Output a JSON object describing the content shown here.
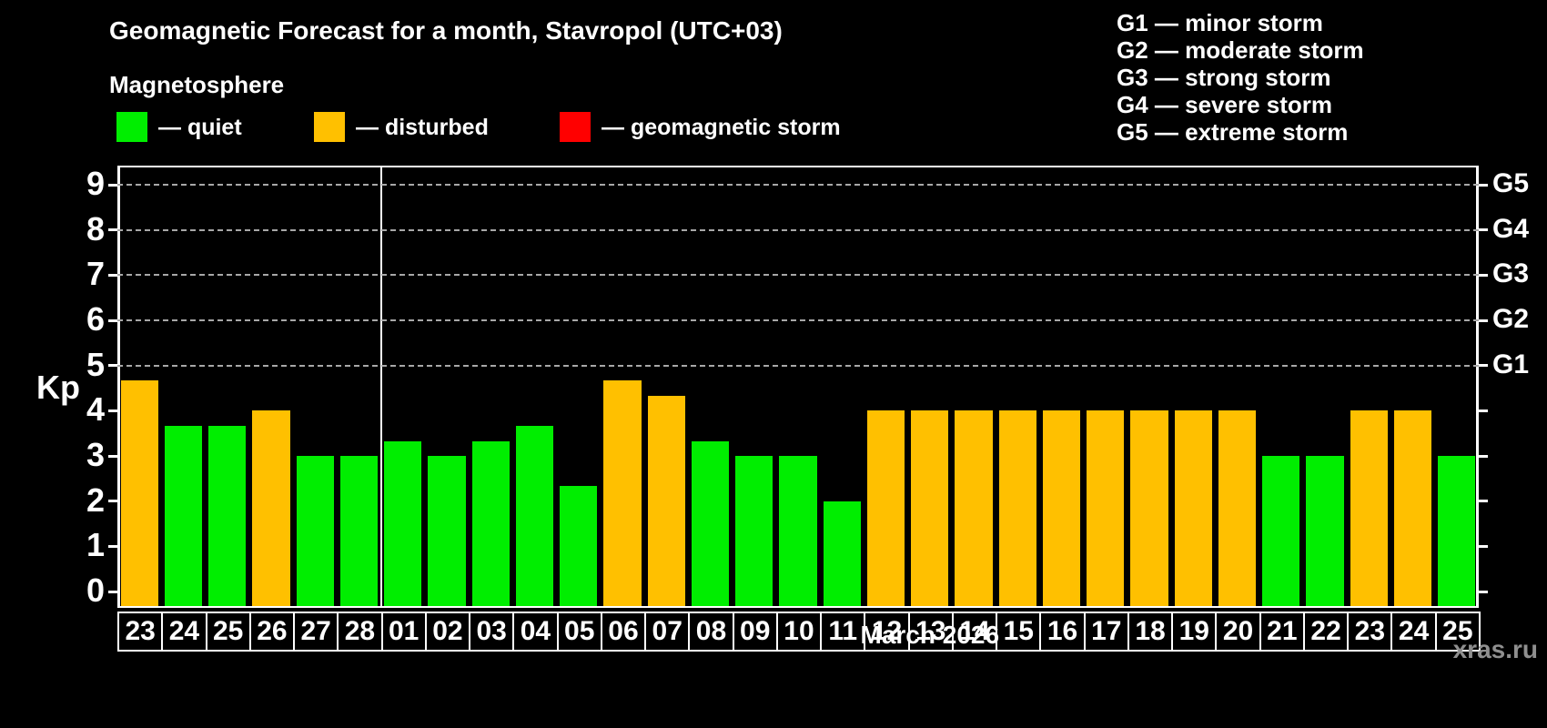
{
  "title": "Geomagnetic Forecast for a month, Stavropol (UTC+03)",
  "subtitle": "Magnetosphere",
  "legend": {
    "quiet_label": "— quiet",
    "disturbed_label": "— disturbed",
    "storm_label": "— geomagnetic storm"
  },
  "g_legend": [
    "G1 — minor storm",
    "G2 — moderate storm",
    "G3 — strong storm",
    "G4 — severe storm",
    "G5 — extreme storm"
  ],
  "colors": {
    "quiet": "#00ee00",
    "disturbed": "#ffc000",
    "storm": "#ff0000",
    "grid": "#a8a8a8",
    "watermark": "#8f8f8f"
  },
  "month_label": "March 2026",
  "watermark": "xras.ru",
  "chart_data": {
    "type": "bar",
    "title": "Geomagnetic Forecast for a month, Stavropol (UTC+03)",
    "ylabel": "Kp",
    "ylim": [
      0,
      9.6
    ],
    "y_ticks": [
      0,
      1,
      2,
      3,
      4,
      5,
      6,
      7,
      8,
      9
    ],
    "grid_levels": [
      5,
      6,
      7,
      8,
      9
    ],
    "g_scale": [
      {
        "kp": 5,
        "label": "G1"
      },
      {
        "kp": 6,
        "label": "G2"
      },
      {
        "kp": 7,
        "label": "G3"
      },
      {
        "kp": 8,
        "label": "G4"
      },
      {
        "kp": 9,
        "label": "G5"
      }
    ],
    "month_separator_after_index": 5,
    "bars": [
      {
        "day": "23",
        "kp": 4.67,
        "status": "disturbed"
      },
      {
        "day": "24",
        "kp": 3.67,
        "status": "quiet"
      },
      {
        "day": "25",
        "kp": 3.67,
        "status": "quiet"
      },
      {
        "day": "26",
        "kp": 4.0,
        "status": "disturbed"
      },
      {
        "day": "27",
        "kp": 3.0,
        "status": "quiet"
      },
      {
        "day": "28",
        "kp": 3.0,
        "status": "quiet"
      },
      {
        "day": "01",
        "kp": 3.33,
        "status": "quiet"
      },
      {
        "day": "02",
        "kp": 3.0,
        "status": "quiet"
      },
      {
        "day": "03",
        "kp": 3.33,
        "status": "quiet"
      },
      {
        "day": "04",
        "kp": 3.67,
        "status": "quiet"
      },
      {
        "day": "05",
        "kp": 2.33,
        "status": "quiet"
      },
      {
        "day": "06",
        "kp": 4.67,
        "status": "disturbed"
      },
      {
        "day": "07",
        "kp": 4.33,
        "status": "disturbed"
      },
      {
        "day": "08",
        "kp": 3.33,
        "status": "quiet"
      },
      {
        "day": "09",
        "kp": 3.0,
        "status": "quiet"
      },
      {
        "day": "10",
        "kp": 3.0,
        "status": "quiet"
      },
      {
        "day": "11",
        "kp": 2.0,
        "status": "quiet"
      },
      {
        "day": "12",
        "kp": 4.0,
        "status": "disturbed"
      },
      {
        "day": "13",
        "kp": 4.0,
        "status": "disturbed"
      },
      {
        "day": "14",
        "kp": 4.0,
        "status": "disturbed"
      },
      {
        "day": "15",
        "kp": 4.0,
        "status": "disturbed"
      },
      {
        "day": "16",
        "kp": 4.0,
        "status": "disturbed"
      },
      {
        "day": "17",
        "kp": 4.0,
        "status": "disturbed"
      },
      {
        "day": "18",
        "kp": 4.0,
        "status": "disturbed"
      },
      {
        "day": "19",
        "kp": 4.0,
        "status": "disturbed"
      },
      {
        "day": "20",
        "kp": 4.0,
        "status": "disturbed"
      },
      {
        "day": "21",
        "kp": 3.0,
        "status": "quiet"
      },
      {
        "day": "22",
        "kp": 3.0,
        "status": "quiet"
      },
      {
        "day": "23",
        "kp": 4.0,
        "status": "disturbed"
      },
      {
        "day": "24",
        "kp": 4.0,
        "status": "disturbed"
      },
      {
        "day": "25",
        "kp": 3.0,
        "status": "quiet"
      }
    ]
  }
}
